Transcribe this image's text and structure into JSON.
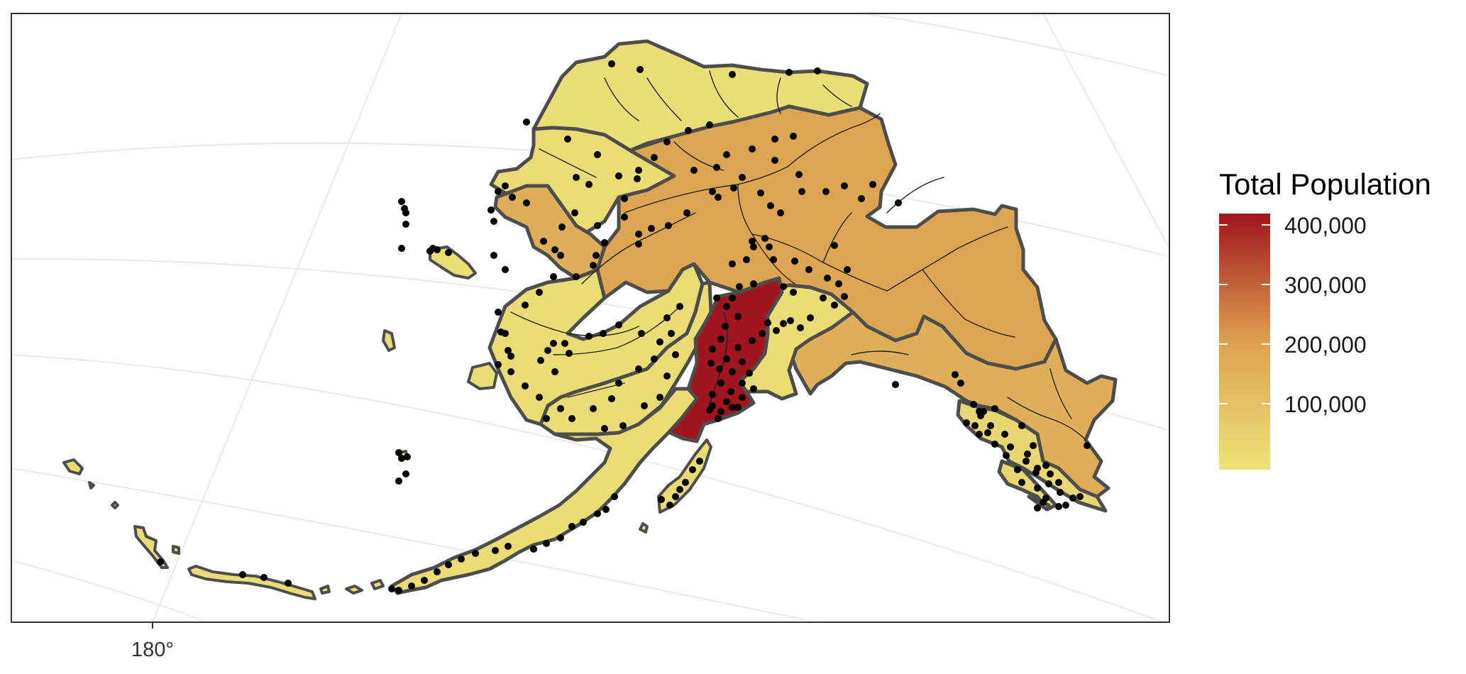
{
  "map": {
    "axis_tick_label": "180°",
    "colors": {
      "scale_low": "#ECE27A",
      "scale_mid": "#DDA050",
      "scale_high": "#A1151E",
      "border": "#4D4D4D",
      "points": "#000000",
      "graticule": "#E3E3E3"
    }
  },
  "legend": {
    "title": "Total Population",
    "placement": "right",
    "labels": [
      "400,000",
      "300,000",
      "200,000",
      "100,000"
    ]
  },
  "regions": [
    {
      "name": "",
      "fill": "#E9DD76"
    },
    {
      "name": "",
      "fill": "#DDA552"
    },
    {
      "name": "",
      "fill": "#E9DC74"
    },
    {
      "name": "",
      "fill": "#DFAE58"
    },
    {
      "name": "",
      "fill": "#A1151E"
    },
    {
      "name": "",
      "fill": "#E9DC74"
    },
    {
      "name": "",
      "fill": "#E8D673"
    },
    {
      "name": "",
      "fill": "#E9DC74"
    }
  ]
}
